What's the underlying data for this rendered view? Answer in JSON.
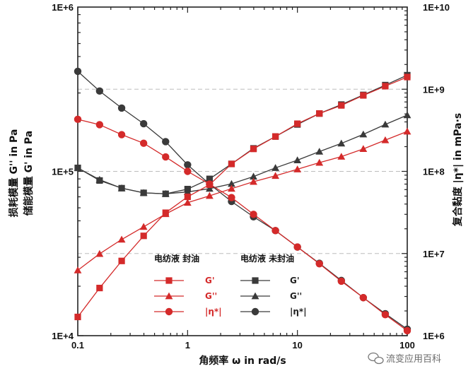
{
  "chart_data": {
    "type": "line",
    "xlabel": "角频率 ω in rad/s",
    "ylabel_left_1": "损耗模量 G'' in Pa",
    "ylabel_left_2": "储能模量 G' in Pa",
    "ylabel_right": "复合黏度 |η*| in mPa·s",
    "x_scale": "log",
    "y_scale_left": "log",
    "y_scale_right": "log",
    "xlim": [
      0.1,
      100
    ],
    "ylim_left": [
      10000,
      1000000
    ],
    "ylim_right": [
      1000000,
      10000000000
    ],
    "x_ticks": [
      "0.1",
      "1",
      "10",
      "100"
    ],
    "y_ticks_left": [
      "1E+4",
      "1E+5",
      "1E+6"
    ],
    "y_ticks_right": [
      "1E+6",
      "1E+7",
      "1E+8",
      "1E+9",
      "1E+10"
    ],
    "grid": "horizontal dashed at right-axis decades",
    "legend": {
      "placement": "center-bottom",
      "group_titles": [
        "电纺液 封油",
        "电纺液 未封油"
      ],
      "labels": [
        "G'",
        "G''",
        "|η*|"
      ]
    },
    "x": [
      0.1,
      0.158,
      0.251,
      0.398,
      0.631,
      1.0,
      1.585,
      2.512,
      3.981,
      6.31,
      10.0,
      15.85,
      25.12,
      39.81,
      63.1,
      100.0
    ],
    "series": [
      {
        "name": "G'",
        "group": "电纺液 封油",
        "axis": "left",
        "marker": "square",
        "color": "#d42a2a",
        "values": [
          13000,
          19500,
          28500,
          40500,
          56000,
          70000,
          83000,
          111000,
          137000,
          163000,
          195000,
          225000,
          252000,
          290000,
          330000,
          375000
        ]
      },
      {
        "name": "G''",
        "group": "电纺液 封油",
        "axis": "left",
        "marker": "triangle",
        "color": "#d42a2a",
        "values": [
          25000,
          31500,
          38500,
          46000,
          55000,
          64500,
          71000,
          78500,
          86500,
          94000,
          103000,
          113000,
          123000,
          137000,
          155000,
          175000
        ]
      },
      {
        "name": "|η*|",
        "group": "电纺液 封油",
        "axis": "right",
        "marker": "circle",
        "color": "#d42a2a",
        "values": [
          430000000,
          370000000,
          280000000,
          220000000,
          150000000,
          100000000,
          70000000,
          48000000,
          30000000,
          19000000,
          12000000,
          7500000,
          4600000,
          2900000,
          1800000,
          1150000
        ]
      },
      {
        "name": "G'",
        "group": "电纺液 未封油",
        "axis": "left",
        "marker": "square",
        "color": "#3a3a3a",
        "values": [
          105000,
          88000,
          79000,
          74000,
          73000,
          78000,
          90000,
          111000,
          138000,
          163000,
          193000,
          225000,
          255000,
          292000,
          335000,
          385000
        ]
      },
      {
        "name": "G''",
        "group": "电纺液 未封油",
        "axis": "left",
        "marker": "triangle",
        "color": "#3a3a3a",
        "values": [
          105000,
          89000,
          79000,
          74000,
          73000,
          75000,
          78500,
          84000,
          93000,
          105000,
          117000,
          132000,
          148000,
          168000,
          193000,
          220000
        ]
      },
      {
        "name": "|η*|",
        "group": "电纺液 未封油",
        "axis": "right",
        "marker": "circle",
        "color": "#3a3a3a",
        "values": [
          1650000000,
          950000000,
          590000000,
          380000000,
          230000000,
          120000000,
          70000000,
          43000000,
          28000000,
          19000000,
          12000000,
          7600000,
          4700000,
          2900000,
          1850000,
          1200000
        ]
      }
    ]
  },
  "watermark": {
    "text": "流变应用百科",
    "icon": "wechat-icon"
  }
}
